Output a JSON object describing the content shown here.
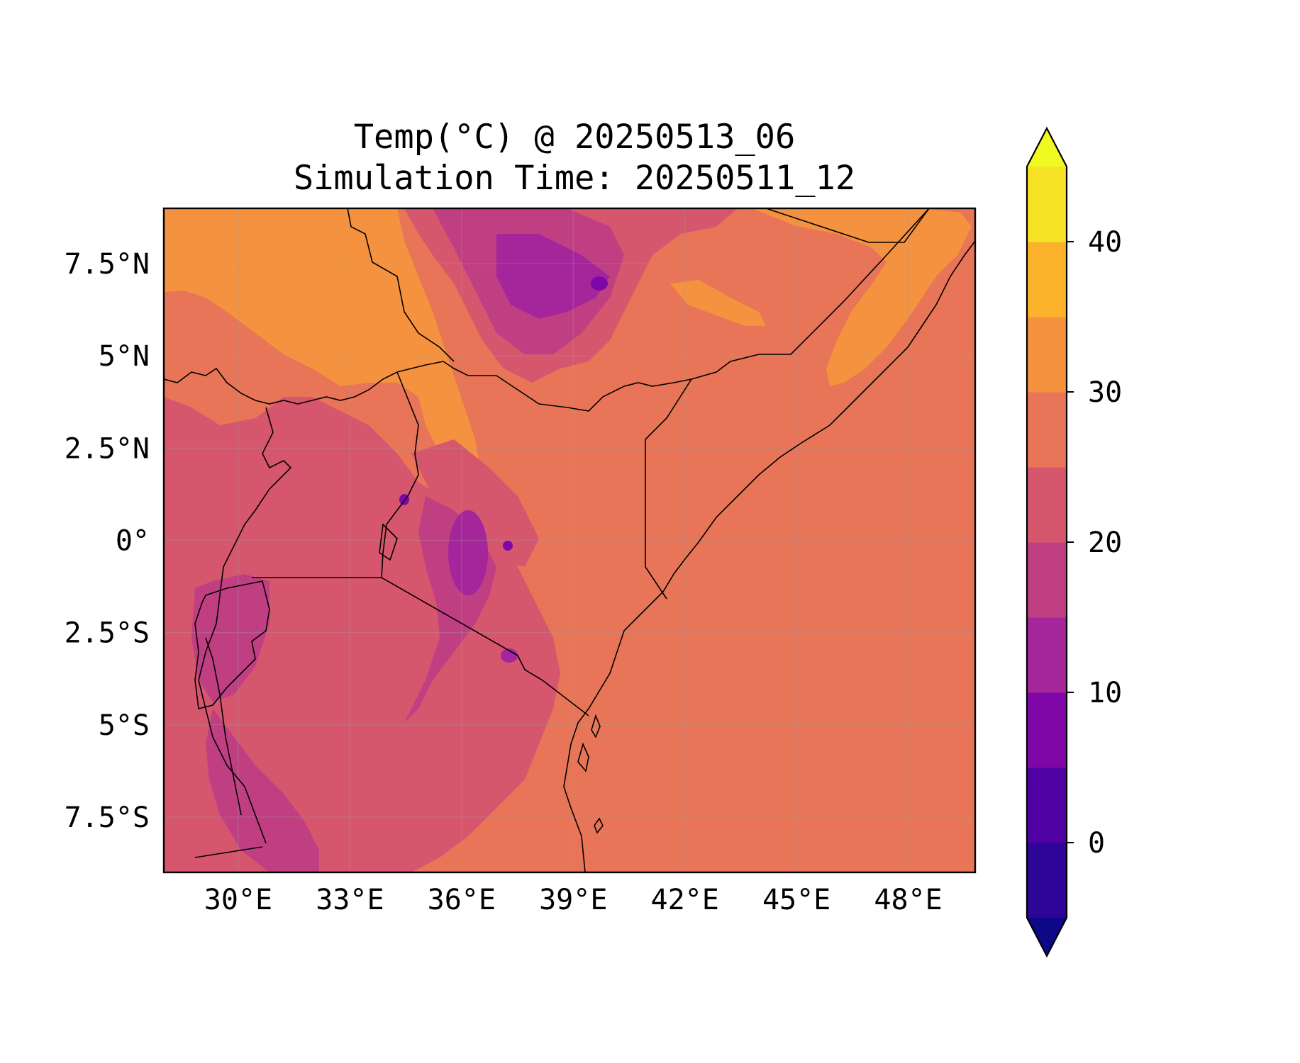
{
  "title": {
    "line1": "Temp(°C) @ 20250513_06",
    "line2": "Simulation Time: 20250511_12"
  },
  "map": {
    "region": "East Africa",
    "lon_range": [
      28.0,
      49.8
    ],
    "lat_range": [
      -9.0,
      9.0
    ],
    "x_ticks": [
      {
        "value": 30,
        "label": "30°E"
      },
      {
        "value": 33,
        "label": "33°E"
      },
      {
        "value": 36,
        "label": "36°E"
      },
      {
        "value": 39,
        "label": "39°E"
      },
      {
        "value": 42,
        "label": "42°E"
      },
      {
        "value": 45,
        "label": "45°E"
      },
      {
        "value": 48,
        "label": "48°E"
      }
    ],
    "y_ticks": [
      {
        "value": 7.5,
        "label": "7.5°N"
      },
      {
        "value": 5,
        "label": "5°N"
      },
      {
        "value": 2.5,
        "label": "2.5°N"
      },
      {
        "value": 0,
        "label": "0°"
      },
      {
        "value": -2.5,
        "label": "2.5°S"
      },
      {
        "value": -5,
        "label": "5°S"
      },
      {
        "value": -7.5,
        "label": "7.5°S"
      }
    ],
    "gridlines": true,
    "colors": {
      "ocean_25_30": "#e87557",
      "band_30_35": "#f5923f",
      "band_20_25": "#d6566e",
      "band_15_20": "#c03f83",
      "band_10_15": "#a4269a",
      "band_5_10": "#7f07a7"
    }
  },
  "colorbar": {
    "levels": [
      -5,
      0,
      5,
      10,
      15,
      20,
      25,
      30,
      35,
      40,
      45
    ],
    "colors": [
      "#2d0597",
      "#5001a3",
      "#7f07a7",
      "#a4269a",
      "#c03f83",
      "#d6566e",
      "#e87557",
      "#f5923f",
      "#fcb32b",
      "#f6e326"
    ],
    "under_color": "#0d0887",
    "over_color": "#f0f921",
    "ticks": [
      {
        "value": 0,
        "label": "0"
      },
      {
        "value": 10,
        "label": "10"
      },
      {
        "value": 20,
        "label": "20"
      },
      {
        "value": 30,
        "label": "30"
      },
      {
        "value": 40,
        "label": "40"
      }
    ],
    "extend": "both"
  }
}
